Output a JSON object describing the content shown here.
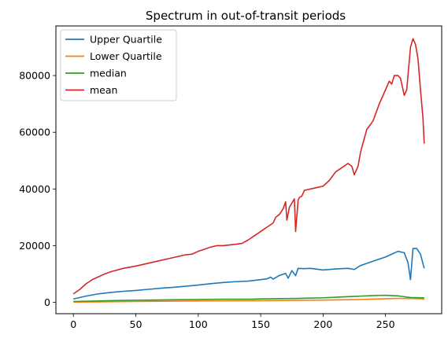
{
  "chart_data": {
    "type": "line",
    "title": "Spectrum in out-of-transit periods",
    "xlabel": "",
    "ylabel": "",
    "xlim": [
      -14,
      295
    ],
    "ylim": [
      -4000,
      97500
    ],
    "xticks": [
      0,
      50,
      100,
      150,
      200,
      250
    ],
    "yticks": [
      0,
      20000,
      40000,
      60000,
      80000
    ],
    "grid": false,
    "legend_position": "top-left",
    "series": [
      {
        "name": "Upper Quartile",
        "color": "#1f77b4",
        "x": [
          0,
          10,
          20,
          30,
          40,
          50,
          60,
          70,
          80,
          90,
          100,
          110,
          120,
          130,
          140,
          150,
          155,
          158,
          160,
          165,
          170,
          172,
          175,
          178,
          180,
          185,
          190,
          200,
          210,
          220,
          225,
          230,
          240,
          250,
          255,
          260,
          265,
          268,
          270,
          272,
          275,
          278,
          281
        ],
        "y": [
          1200,
          2200,
          3000,
          3500,
          3900,
          4200,
          4600,
          5000,
          5300,
          5700,
          6100,
          6600,
          7000,
          7300,
          7500,
          8000,
          8300,
          8900,
          8200,
          9500,
          10200,
          8500,
          11200,
          9400,
          12000,
          11900,
          12000,
          11400,
          11800,
          12000,
          11600,
          13000,
          14500,
          16000,
          17000,
          18000,
          17500,
          14000,
          8000,
          19000,
          19000,
          17000,
          12000
        ]
      },
      {
        "name": "Lower Quartile",
        "color": "#ff7f0e",
        "x": [
          0,
          50,
          100,
          150,
          200,
          230,
          250,
          260,
          270,
          281
        ],
        "y": [
          100,
          300,
          500,
          600,
          800,
          1000,
          1300,
          1400,
          1400,
          1200
        ]
      },
      {
        "name": "median",
        "color": "#2ca02c",
        "x": [
          0,
          20,
          40,
          60,
          80,
          100,
          120,
          140,
          160,
          180,
          200,
          210,
          220,
          230,
          240,
          250,
          255,
          260,
          265,
          270,
          281
        ],
        "y": [
          300,
          500,
          700,
          800,
          900,
          1000,
          1100,
          1100,
          1300,
          1400,
          1600,
          1800,
          2000,
          2200,
          2400,
          2500,
          2400,
          2300,
          2000,
          1700,
          1600
        ]
      },
      {
        "name": "mean",
        "color": "#d62728",
        "x": [
          0,
          5,
          10,
          15,
          20,
          25,
          30,
          40,
          50,
          60,
          70,
          80,
          90,
          95,
          100,
          110,
          115,
          120,
          130,
          135,
          140,
          145,
          150,
          155,
          160,
          162,
          165,
          168,
          170,
          171,
          173,
          175,
          177,
          178,
          180,
          181,
          183,
          185,
          190,
          195,
          200,
          205,
          210,
          215,
          220,
          223,
          225,
          228,
          230,
          235,
          240,
          245,
          250,
          253,
          255,
          257,
          260,
          262,
          265,
          267,
          268,
          270,
          272,
          274,
          276,
          278,
          280,
          281
        ],
        "y": [
          3000,
          4500,
          6500,
          8000,
          9000,
          10000,
          10800,
          12000,
          12800,
          13800,
          14800,
          15800,
          16800,
          17000,
          18000,
          19500,
          20000,
          20000,
          20500,
          20800,
          22000,
          23500,
          25000,
          26500,
          28000,
          30000,
          31000,
          33000,
          35500,
          29000,
          33500,
          35000,
          36500,
          25000,
          36000,
          37000,
          37500,
          39500,
          40000,
          40500,
          41000,
          43000,
          46000,
          47500,
          49000,
          48000,
          45000,
          48000,
          53000,
          61000,
          64000,
          70000,
          75000,
          78000,
          77000,
          80000,
          80000,
          79000,
          73000,
          75000,
          80000,
          90000,
          93000,
          91000,
          86000,
          75000,
          65000,
          56000
        ]
      }
    ]
  }
}
